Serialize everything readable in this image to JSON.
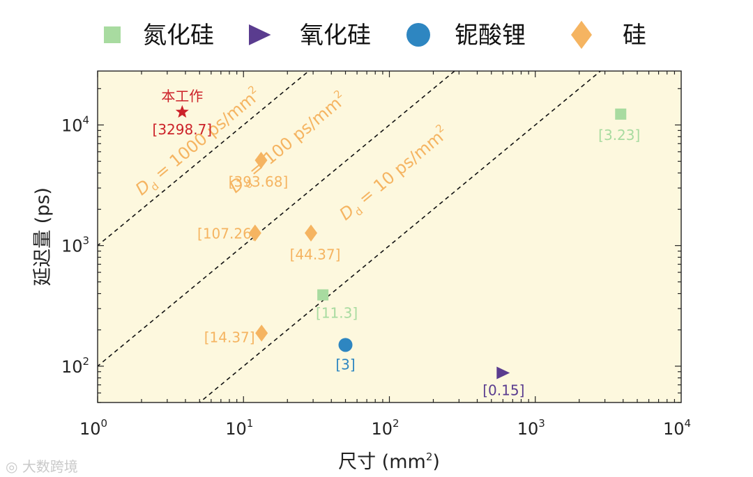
{
  "chart_data": {
    "type": "scatter",
    "xscale": "log",
    "yscale": "log",
    "xlim": [
      1,
      10000
    ],
    "ylim": [
      50,
      28000
    ],
    "xlabel_main": "尺寸 (mm",
    "xlabel_sup": "2",
    "xlabel_end": ")",
    "ylabel": "延迟量 (ps)",
    "grid": false,
    "background_color": "#fdf8de",
    "legend": {
      "placement": "top",
      "entries": [
        {
          "name": "氮化硅",
          "marker": "square",
          "color": "#a8dba0"
        },
        {
          "name": "氧化硅",
          "marker": "triangle-right",
          "color": "#5a3c8f"
        },
        {
          "name": "铌酸锂",
          "marker": "circle",
          "color": "#2e86c1"
        },
        {
          "name": "硅",
          "marker": "diamond",
          "color": "#f5b461"
        }
      ]
    },
    "x_ticks": [
      {
        "value": 1,
        "base": "10",
        "exp": "0"
      },
      {
        "value": 10,
        "base": "10",
        "exp": "1"
      },
      {
        "value": 100,
        "base": "10",
        "exp": "2"
      },
      {
        "value": 1000,
        "base": "10",
        "exp": "3"
      },
      {
        "value": 10000,
        "base": "10",
        "exp": "4"
      }
    ],
    "y_ticks": [
      {
        "value": 100,
        "base": "10",
        "exp": "2"
      },
      {
        "value": 1000,
        "base": "10",
        "exp": "3"
      },
      {
        "value": 10000,
        "base": "10",
        "exp": "4"
      }
    ],
    "points": [
      {
        "material": "本工作",
        "x": 3.8,
        "y": 12800,
        "marker": "star",
        "color": "#cc2229",
        "label": "[3298.7]",
        "title": "本工作"
      },
      {
        "material": "硅",
        "x": 13.2,
        "y": 5100,
        "marker": "diamond",
        "color": "#f5b461",
        "label": "[393.68]"
      },
      {
        "material": "硅",
        "x": 12,
        "y": 1270,
        "marker": "diamond",
        "color": "#f5b461",
        "label": "[107.26]"
      },
      {
        "material": "硅",
        "x": 29,
        "y": 1270,
        "marker": "diamond",
        "color": "#f5b461",
        "label": "[44.37]"
      },
      {
        "material": "硅",
        "x": 13.3,
        "y": 188,
        "marker": "diamond",
        "color": "#f5b461",
        "label": "[14.37]"
      },
      {
        "material": "氮化硅",
        "x": 35,
        "y": 390,
        "marker": "square",
        "color": "#a8dba0",
        "label": "[11.3]"
      },
      {
        "material": "铌酸锂",
        "x": 50,
        "y": 150,
        "marker": "circle",
        "color": "#2e86c1",
        "label": "[3]"
      },
      {
        "material": "氧化硅",
        "x": 600,
        "y": 88,
        "marker": "triangle-right",
        "color": "#5a3c8f",
        "label": "[0.15]"
      },
      {
        "material": "氮化硅",
        "x": 3850,
        "y": 12300,
        "marker": "square",
        "color": "#a8dba0",
        "label": "[3.23]"
      }
    ],
    "iso_lines": [
      {
        "density": 1000,
        "style": "dashed",
        "label_main": "D",
        "label_sub": "d",
        "label_rest": " = 1000 ps/mm",
        "label_sup": "2"
      },
      {
        "density": 100,
        "style": "dashed",
        "label_main": "D",
        "label_sub": "d",
        "label_rest": " = 100 ps/mm",
        "label_sup": "2"
      },
      {
        "density": 10,
        "style": "dashed",
        "label_main": "D",
        "label_sub": "d",
        "label_rest": " = 10 ps/mm",
        "label_sup": "2"
      }
    ]
  },
  "watermark": "大数跨境"
}
